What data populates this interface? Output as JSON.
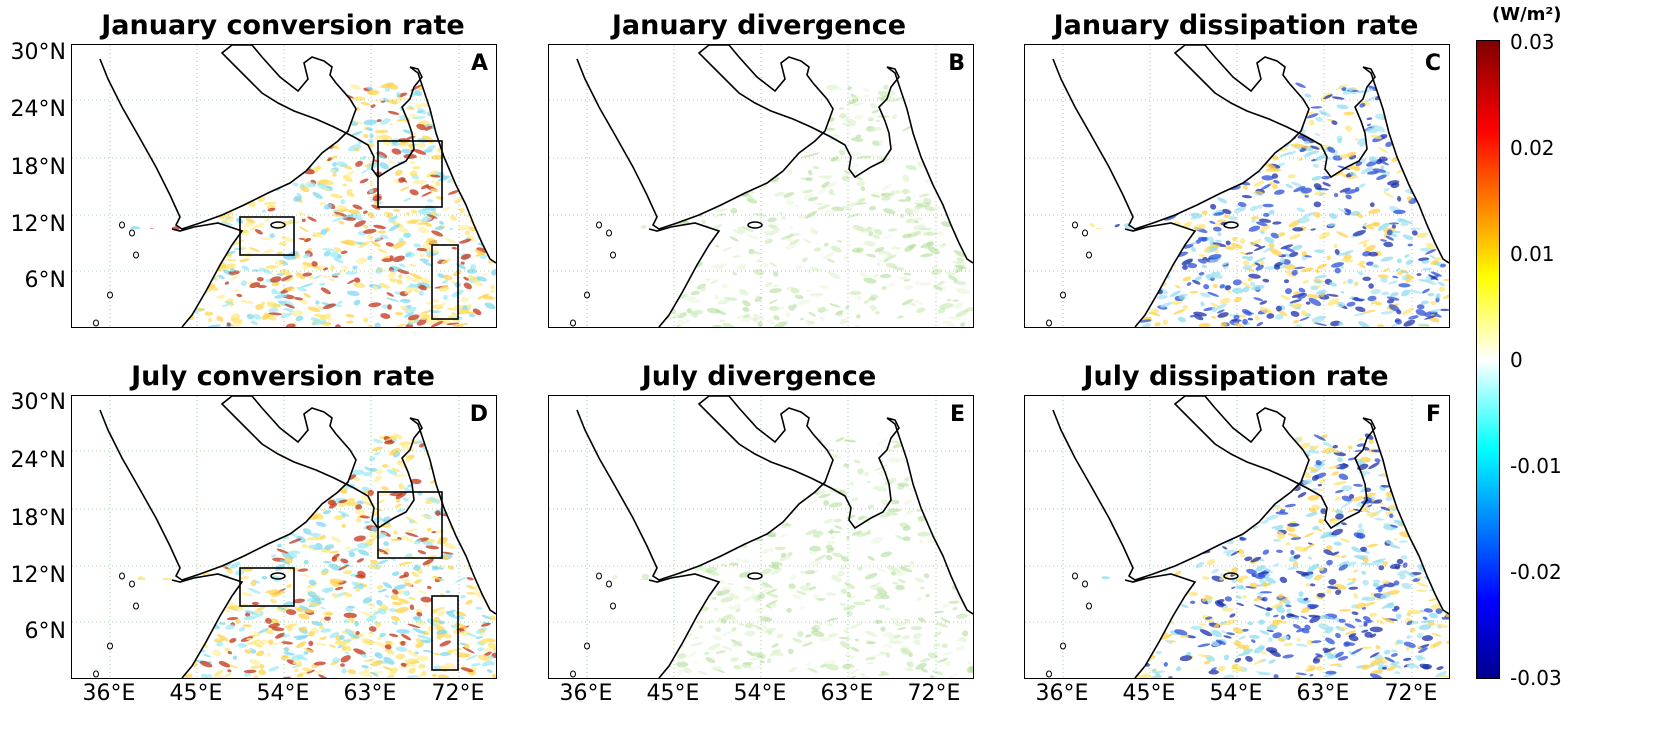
{
  "panels": [
    {
      "title": "January conversion rate",
      "label": "A",
      "field": "conversion",
      "boxes": true
    },
    {
      "title": "January divergence",
      "label": "B",
      "field": "divergence",
      "boxes": false
    },
    {
      "title": "January dissipation rate",
      "label": "C",
      "field": "dissipation",
      "boxes": false
    },
    {
      "title": "July conversion rate",
      "label": "D",
      "field": "conversion",
      "boxes": true
    },
    {
      "title": "July divergence",
      "label": "E",
      "field": "divergence",
      "boxes": false
    },
    {
      "title": "July dissipation rate",
      "label": "F",
      "field": "dissipation",
      "boxes": false
    }
  ],
  "lat_labels": [
    "30°N",
    "24°N",
    "18°N",
    "12°N",
    "6°N"
  ],
  "lon_labels": [
    "36°E",
    "45°E",
    "54°E",
    "63°E",
    "72°E"
  ],
  "colorbar": {
    "unit": "(W/m²)",
    "ticks": [
      "0.03",
      "0.02",
      "0.01",
      "0",
      "-0.01",
      "-0.02",
      "-0.03"
    ],
    "range": [
      -0.03,
      0.03
    ],
    "colormap": "jet",
    "colors": [
      "#00008f",
      "#0000ff",
      "#00ffff",
      "#ffffff",
      "#ffff00",
      "#ff0000",
      "#800000"
    ]
  }
}
